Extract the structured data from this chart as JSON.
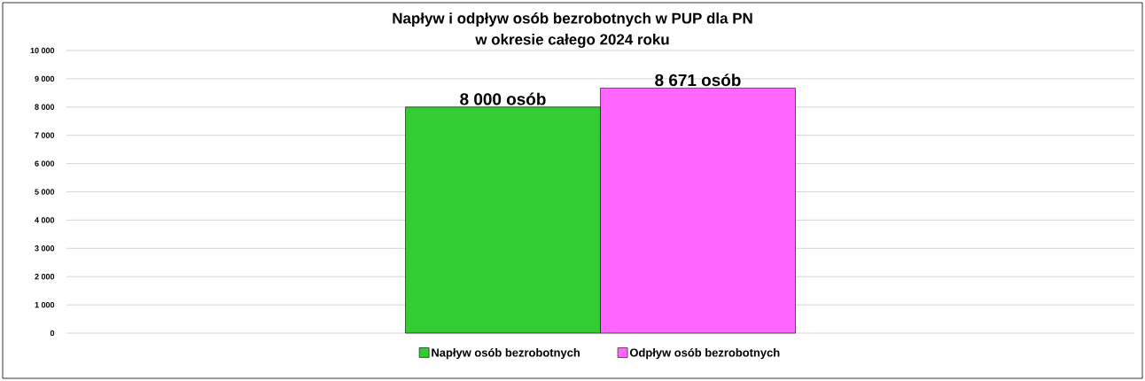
{
  "chart_data": {
    "type": "bar",
    "title": "Napływ i odpływ osób bezrobotnych w PUP dla PN",
    "subtitle": "w okresie całego 2024 roku",
    "categories": [
      null
    ],
    "series": [
      {
        "name": "Napływ osób bezrobotnych",
        "color": "#33cc33",
        "values": [
          8000
        ],
        "value_labels": [
          "8 000 osób"
        ]
      },
      {
        "name": "Odpływ osób bezrobotnych",
        "color": "#ff66ff",
        "values": [
          8671
        ],
        "value_labels": [
          "8 671 osób"
        ]
      }
    ],
    "ylim": [
      0,
      10000
    ],
    "yticks": [
      {
        "value": 0,
        "label": "0"
      },
      {
        "value": 1000,
        "label": "1 000"
      },
      {
        "value": 2000,
        "label": "2 000"
      },
      {
        "value": 3000,
        "label": "3 000"
      },
      {
        "value": 4000,
        "label": "4 000"
      },
      {
        "value": 5000,
        "label": "5 000"
      },
      {
        "value": 6000,
        "label": "6 000"
      },
      {
        "value": 7000,
        "label": "7 000"
      },
      {
        "value": 8000,
        "label": "8 000"
      },
      {
        "value": 9000,
        "label": "9 000"
      },
      {
        "value": 10000,
        "label": "10 000"
      }
    ],
    "grid": "y",
    "legend": "bottom"
  }
}
